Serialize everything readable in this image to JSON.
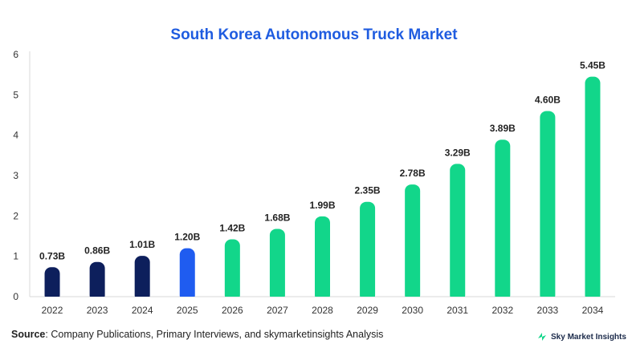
{
  "chart_data": {
    "type": "bar",
    "title": "South Korea Autonomous Truck Market",
    "categories": [
      "2022",
      "2023",
      "2024",
      "2025",
      "2026",
      "2027",
      "2028",
      "2029",
      "2030",
      "2031",
      "2032",
      "2033",
      "2034"
    ],
    "values": [
      0.73,
      0.86,
      1.01,
      1.2,
      1.42,
      1.68,
      1.99,
      2.35,
      2.78,
      3.29,
      3.89,
      4.6,
      5.45
    ],
    "data_labels": [
      "0.73B",
      "0.86B",
      "1.01B",
      "1.20B",
      "1.42B",
      "1.68B",
      "1.99B",
      "2.35B",
      "2.78B",
      "3.29B",
      "3.89B",
      "4.60B",
      "5.45B"
    ],
    "bar_colors": [
      "#0d1f5c",
      "#0d1f5c",
      "#0d1f5c",
      "#1f5cf0",
      "#12d68a",
      "#12d68a",
      "#12d68a",
      "#12d68a",
      "#12d68a",
      "#12d68a",
      "#12d68a",
      "#12d68a",
      "#12d68a"
    ],
    "ylim": [
      0,
      6
    ],
    "yticks": [
      "0",
      "1",
      "2",
      "3",
      "4",
      "5",
      "6"
    ],
    "grid": false,
    "legend": "none"
  },
  "source": {
    "label": "Source",
    "text": ": Company Publications, Primary Interviews, and skymarketinsights Analysis"
  },
  "brand": {
    "name": "Sky Market Insights",
    "icon": "brand-logo-icon",
    "color": "#12d68a"
  }
}
